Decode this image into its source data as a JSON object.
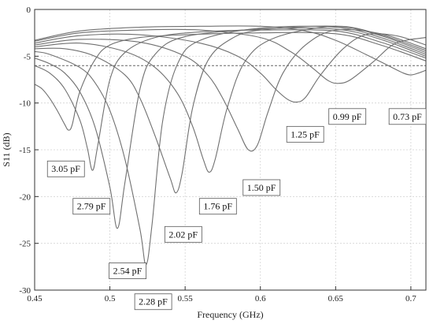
{
  "chart_data": {
    "type": "line",
    "title": "",
    "xlabel": "Frequency (GHz)",
    "ylabel": "S11 (dB)",
    "xlim": [
      0.45,
      0.71
    ],
    "ylim": [
      -30,
      0
    ],
    "xticks": [
      0.45,
      0.5,
      0.55,
      0.6,
      0.65,
      0.7
    ],
    "xtick_labels": [
      "0.45",
      "0.5",
      "0.55",
      "0.6",
      "0.65",
      "0.7"
    ],
    "yticks": [
      0,
      -5,
      -10,
      -15,
      -20,
      -25,
      -30
    ],
    "ytick_labels": [
      "0",
      "-5",
      "-10",
      "-15",
      "-20",
      "-25",
      "-30"
    ],
    "grid": true,
    "reference_line": {
      "y": -6,
      "style": "dashed"
    },
    "series": [
      {
        "name": "3.05 pF",
        "points": [
          [
            0.45,
            -8.0
          ],
          [
            0.455,
            -8.5
          ],
          [
            0.46,
            -9.5
          ],
          [
            0.465,
            -10.8
          ],
          [
            0.47,
            -12.3
          ],
          [
            0.4725,
            -12.9
          ],
          [
            0.475,
            -12.3
          ],
          [
            0.48,
            -8.8
          ],
          [
            0.49,
            -5.4
          ],
          [
            0.5,
            -3.8
          ],
          [
            0.52,
            -3.0
          ],
          [
            0.55,
            -2.7
          ],
          [
            0.6,
            -2.5
          ],
          [
            0.65,
            -2.6
          ],
          [
            0.68,
            -3.8
          ],
          [
            0.71,
            -5.5
          ]
        ]
      },
      {
        "name": "2.79 pF",
        "points": [
          [
            0.45,
            -6.0
          ],
          [
            0.46,
            -6.8
          ],
          [
            0.47,
            -8.5
          ],
          [
            0.48,
            -11.8
          ],
          [
            0.485,
            -14.8
          ],
          [
            0.4885,
            -17.2
          ],
          [
            0.492,
            -14.5
          ],
          [
            0.5,
            -7.5
          ],
          [
            0.51,
            -4.6
          ],
          [
            0.53,
            -3.0
          ],
          [
            0.56,
            -2.4
          ],
          [
            0.6,
            -2.2
          ],
          [
            0.65,
            -2.3
          ],
          [
            0.68,
            -3.5
          ],
          [
            0.71,
            -5.2
          ]
        ]
      },
      {
        "name": "2.54 pF",
        "points": [
          [
            0.45,
            -5.2
          ],
          [
            0.46,
            -5.8
          ],
          [
            0.47,
            -6.8
          ],
          [
            0.48,
            -8.8
          ],
          [
            0.49,
            -12.5
          ],
          [
            0.5,
            -19.0
          ],
          [
            0.505,
            -23.4
          ],
          [
            0.51,
            -18.5
          ],
          [
            0.52,
            -8.5
          ],
          [
            0.53,
            -4.8
          ],
          [
            0.55,
            -2.9
          ],
          [
            0.6,
            -2.1
          ],
          [
            0.65,
            -2.1
          ],
          [
            0.68,
            -3.2
          ],
          [
            0.71,
            -5.0
          ]
        ]
      },
      {
        "name": "2.28 pF",
        "points": [
          [
            0.45,
            -4.5
          ],
          [
            0.46,
            -4.8
          ],
          [
            0.48,
            -6.2
          ],
          [
            0.49,
            -7.8
          ],
          [
            0.5,
            -10.8
          ],
          [
            0.51,
            -16.0
          ],
          [
            0.52,
            -23.5
          ],
          [
            0.524,
            -27.3
          ],
          [
            0.528,
            -23.0
          ],
          [
            0.535,
            -12.0
          ],
          [
            0.545,
            -5.8
          ],
          [
            0.56,
            -3.3
          ],
          [
            0.6,
            -2.0
          ],
          [
            0.65,
            -1.9
          ],
          [
            0.68,
            -3.0
          ],
          [
            0.71,
            -4.8
          ]
        ]
      },
      {
        "name": "2.02 pF",
        "points": [
          [
            0.45,
            -4.2
          ],
          [
            0.47,
            -4.2
          ],
          [
            0.49,
            -5.0
          ],
          [
            0.51,
            -7.0
          ],
          [
            0.52,
            -9.5
          ],
          [
            0.53,
            -13.5
          ],
          [
            0.54,
            -18.0
          ],
          [
            0.544,
            -19.6
          ],
          [
            0.548,
            -17.5
          ],
          [
            0.555,
            -10.5
          ],
          [
            0.565,
            -5.5
          ],
          [
            0.58,
            -3.2
          ],
          [
            0.6,
            -2.2
          ],
          [
            0.65,
            -1.8
          ],
          [
            0.68,
            -2.8
          ],
          [
            0.71,
            -4.6
          ]
        ]
      },
      {
        "name": "1.76 pF",
        "points": [
          [
            0.45,
            -4.0
          ],
          [
            0.48,
            -3.6
          ],
          [
            0.51,
            -4.5
          ],
          [
            0.53,
            -6.2
          ],
          [
            0.545,
            -9.0
          ],
          [
            0.555,
            -12.5
          ],
          [
            0.562,
            -16.0
          ],
          [
            0.566,
            -17.4
          ],
          [
            0.57,
            -16.0
          ],
          [
            0.578,
            -10.5
          ],
          [
            0.59,
            -5.5
          ],
          [
            0.61,
            -3.0
          ],
          [
            0.65,
            -1.8
          ],
          [
            0.68,
            -2.7
          ],
          [
            0.71,
            -4.4
          ]
        ]
      },
      {
        "name": "1.50 pF",
        "points": [
          [
            0.45,
            -3.8
          ],
          [
            0.48,
            -3.2
          ],
          [
            0.52,
            -3.5
          ],
          [
            0.55,
            -5.0
          ],
          [
            0.565,
            -7.0
          ],
          [
            0.575,
            -9.5
          ],
          [
            0.585,
            -12.8
          ],
          [
            0.592,
            -15.0
          ],
          [
            0.598,
            -14.5
          ],
          [
            0.605,
            -11.0
          ],
          [
            0.615,
            -6.8
          ],
          [
            0.63,
            -3.8
          ],
          [
            0.65,
            -2.2
          ],
          [
            0.68,
            -2.6
          ],
          [
            0.71,
            -4.2
          ]
        ]
      },
      {
        "name": "1.25 pF",
        "points": [
          [
            0.45,
            -3.6
          ],
          [
            0.48,
            -2.8
          ],
          [
            0.52,
            -2.7
          ],
          [
            0.56,
            -3.6
          ],
          [
            0.585,
            -5.0
          ],
          [
            0.6,
            -6.8
          ],
          [
            0.61,
            -8.5
          ],
          [
            0.618,
            -9.6
          ],
          [
            0.624,
            -9.9
          ],
          [
            0.63,
            -9.4
          ],
          [
            0.64,
            -7.0
          ],
          [
            0.655,
            -4.2
          ],
          [
            0.67,
            -2.7
          ],
          [
            0.69,
            -2.8
          ],
          [
            0.71,
            -3.8
          ]
        ]
      },
      {
        "name": "0.99 pF",
        "points": [
          [
            0.45,
            -3.4
          ],
          [
            0.48,
            -2.5
          ],
          [
            0.52,
            -2.2
          ],
          [
            0.56,
            -2.2
          ],
          [
            0.6,
            -3.0
          ],
          [
            0.62,
            -4.5
          ],
          [
            0.635,
            -6.3
          ],
          [
            0.645,
            -7.6
          ],
          [
            0.652,
            -7.9
          ],
          [
            0.66,
            -7.5
          ],
          [
            0.675,
            -5.6
          ],
          [
            0.69,
            -3.6
          ],
          [
            0.71,
            -3.0
          ]
        ]
      },
      {
        "name": "0.73 pF",
        "points": [
          [
            0.45,
            -3.3
          ],
          [
            0.48,
            -2.3
          ],
          [
            0.52,
            -1.9
          ],
          [
            0.56,
            -1.8
          ],
          [
            0.6,
            -1.8
          ],
          [
            0.63,
            -2.3
          ],
          [
            0.65,
            -3.3
          ],
          [
            0.67,
            -4.8
          ],
          [
            0.685,
            -6.0
          ],
          [
            0.695,
            -6.8
          ],
          [
            0.7,
            -7.0
          ],
          [
            0.705,
            -6.8
          ],
          [
            0.71,
            -6.5
          ]
        ]
      }
    ],
    "annotations": [
      {
        "text": "3.05 pF",
        "x": 0.4585,
        "y": -16.2
      },
      {
        "text": "2.79 pF",
        "x": 0.4755,
        "y": -20.2
      },
      {
        "text": "2.54 pF",
        "x": 0.4995,
        "y": -27.1
      },
      {
        "text": "2.28 pF",
        "x": 0.5165,
        "y": -30.4
      },
      {
        "text": "2.02 pF",
        "x": 0.5365,
        "y": -23.2
      },
      {
        "text": "1.76 pF",
        "x": 0.5595,
        "y": -20.2
      },
      {
        "text": "1.50 pF",
        "x": 0.5885,
        "y": -18.2
      },
      {
        "text": "1.25 pF",
        "x": 0.6175,
        "y": -12.5
      },
      {
        "text": "0.99 pF",
        "x": 0.6455,
        "y": -10.6
      },
      {
        "text": "0.73 pF",
        "x": 0.6855,
        "y": -10.6
      }
    ]
  }
}
